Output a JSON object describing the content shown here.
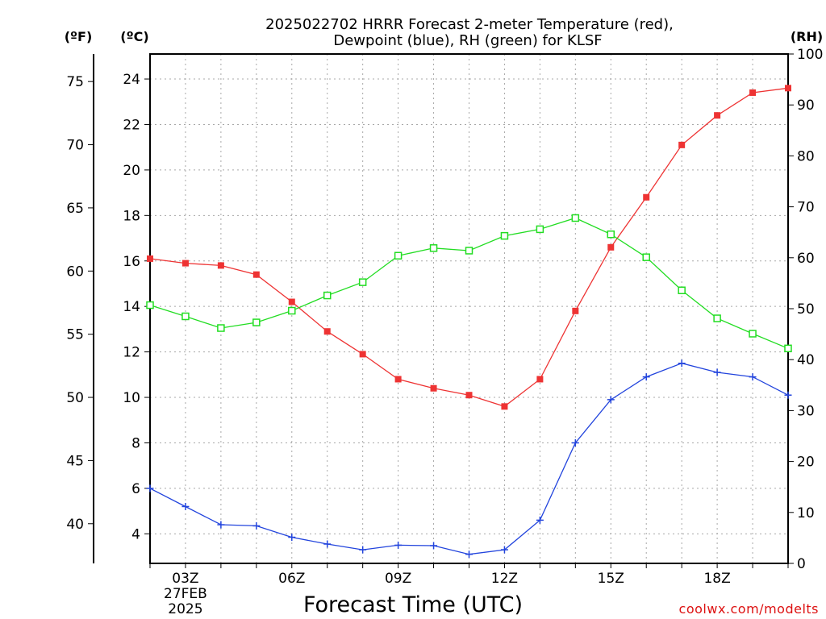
{
  "chart_data": {
    "type": "line",
    "title_lines": [
      "2025022702 HRRR Forecast 2-meter Temperature (red),",
      "Dewpoint (blue), RH (green) for KLSF"
    ],
    "xlabel": "Forecast Time (UTC)",
    "credit": "coolwx.com/modelts",
    "units": {
      "fahrenheit": "(ºF)",
      "celsius": "(ºC)",
      "rh": "(RH)"
    },
    "x_hours": [
      2,
      3,
      4,
      5,
      6,
      7,
      8,
      9,
      10,
      11,
      12,
      13,
      14,
      15,
      16,
      17,
      18,
      19,
      20
    ],
    "x_range": [
      2,
      20
    ],
    "x_ticks": [
      {
        "hour": 3,
        "label": "03Z",
        "sub1": "27FEB",
        "sub2": "2025"
      },
      {
        "hour": 6,
        "label": "06Z"
      },
      {
        "hour": 9,
        "label": "09Z"
      },
      {
        "hour": 12,
        "label": "12Z"
      },
      {
        "hour": 15,
        "label": "15Z"
      },
      {
        "hour": 18,
        "label": "18Z"
      }
    ],
    "celsius_axis": {
      "range": [
        2.7,
        25.1
      ],
      "ticks": [
        4,
        6,
        8,
        10,
        12,
        14,
        16,
        18,
        20,
        22,
        24
      ]
    },
    "fahrenheit_axis": {
      "range": [
        36.86,
        77.18
      ],
      "ticks": [
        40,
        45,
        50,
        55,
        60,
        65,
        70,
        75
      ]
    },
    "rh_axis": {
      "range": [
        0,
        100
      ],
      "ticks": [
        0,
        10,
        20,
        30,
        40,
        50,
        60,
        70,
        80,
        90,
        100
      ]
    },
    "series": [
      {
        "name": "Temperature",
        "axis": "celsius",
        "color": "#ee3333",
        "marker": "filled-square",
        "values": [
          16.1,
          15.9,
          15.8,
          15.4,
          14.2,
          12.9,
          11.9,
          10.8,
          10.4,
          10.1,
          9.6,
          10.8,
          13.8,
          16.6,
          18.8,
          21.1,
          22.4,
          23.4,
          23.6
        ]
      },
      {
        "name": "Dewpoint",
        "axis": "celsius",
        "color": "#2244dd",
        "marker": "plus",
        "values": [
          6.0,
          5.2,
          4.4,
          4.35,
          3.85,
          3.55,
          3.3,
          3.5,
          3.48,
          3.1,
          3.3,
          4.6,
          8.0,
          9.9,
          10.9,
          11.5,
          11.1,
          10.9,
          10.1
        ]
      },
      {
        "name": "RH",
        "axis": "rh",
        "color": "#22dd22",
        "marker": "open-square",
        "values": [
          50.7,
          48.5,
          46.2,
          47.3,
          49.6,
          52.6,
          55.2,
          60.4,
          61.9,
          61.4,
          64.3,
          65.6,
          67.8,
          64.6,
          60.1,
          53.6,
          48.1,
          45.1,
          42.2
        ]
      }
    ]
  }
}
